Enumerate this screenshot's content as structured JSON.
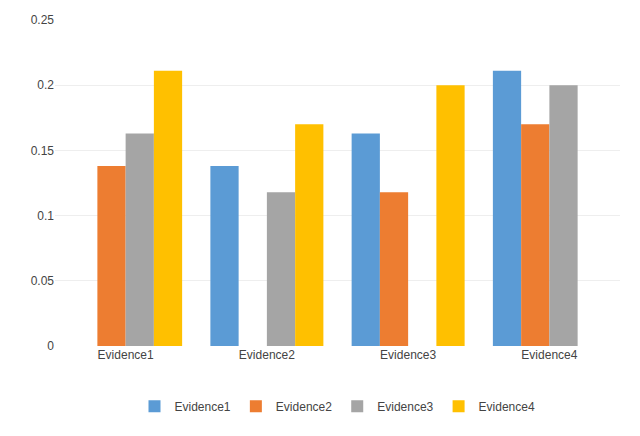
{
  "chart_data": {
    "type": "bar",
    "categories": [
      "Evidence1",
      "Evidence2",
      "Evidence3",
      "Evidence4"
    ],
    "series": [
      {
        "name": "Evidence1",
        "color": "#5B9BD5",
        "values": [
          0,
          0.138,
          0.163,
          0.211
        ]
      },
      {
        "name": "Evidence2",
        "color": "#ED7D31",
        "values": [
          0.138,
          0,
          0.118,
          0.17
        ]
      },
      {
        "name": "Evidence3",
        "color": "#A5A5A5",
        "values": [
          0.163,
          0.118,
          0,
          0.2
        ]
      },
      {
        "name": "Evidence4",
        "color": "#FFC000",
        "values": [
          0.211,
          0.17,
          0.2,
          0
        ]
      }
    ],
    "ylim": [
      0,
      0.25
    ],
    "yticks": [
      0,
      0.05,
      0.1,
      0.15,
      0.2,
      0.25
    ],
    "grid": true,
    "legend": "bottom"
  }
}
